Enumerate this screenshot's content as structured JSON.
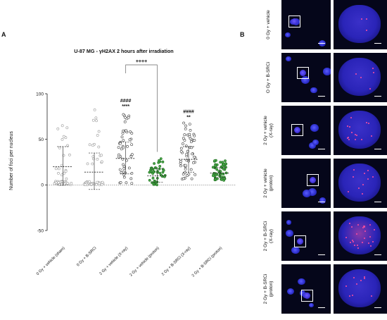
{
  "panel_a_letter": "A",
  "panel_b_letter": "B",
  "chart_data": {
    "type": "scatter",
    "title": "U-87 MG  - γH2AX 2 hours after irradiation",
    "ylabel": "Number of foci per nucleus",
    "xlabel": "",
    "ylim": [
      -50,
      100
    ],
    "yticks": [
      -50,
      0,
      50,
      100
    ],
    "categories": [
      "0 Gy + vehicle (sham)",
      "0 Gy + B-SRCi",
      "2 Gy + vehicle (X-ray)",
      "2 Gy + vehicle (proton)",
      "2 Gy + B-SRCi (X-ray)",
      "2 Gy + B-SRCi (proton)"
    ],
    "colors": [
      "#9a9a9a",
      "#9a9a9a",
      "#3a3a3a",
      "#1f6e1f",
      "#3a3a3a",
      "#1f6e1f"
    ],
    "fills": [
      "#ffffff",
      "#ffffff",
      "#ffffff",
      "#4aa84a",
      "#ffffff",
      "#4aa84a"
    ],
    "means": [
      20,
      14,
      29,
      10,
      28,
      13
    ],
    "sd_upper": [
      42,
      35,
      47,
      18,
      42,
      19
    ],
    "sd_lower": [
      0,
      -5,
      12,
      3,
      14,
      8
    ],
    "ranges": [
      [
        0,
        66
      ],
      [
        0,
        86
      ],
      [
        0,
        80
      ],
      [
        0,
        30
      ],
      [
        6,
        68
      ],
      [
        4,
        27
      ]
    ],
    "annotations": [
      {
        "category": 2,
        "lines": [
          "####",
          "****"
        ]
      },
      {
        "category": 4,
        "lines": [
          "####",
          "**"
        ]
      }
    ],
    "comparison": {
      "from": 2,
      "to": 3,
      "label": "++++"
    },
    "grid": false,
    "reference_line": 0
  },
  "microscopy_rows": [
    {
      "label_lines": [
        "0 Gy + vehicle"
      ]
    },
    {
      "label_lines": [
        "O Gy + B-SRCi"
      ]
    },
    {
      "label_lines": [
        "2 Gy + vehicle",
        "(X-ray)"
      ]
    },
    {
      "label_lines": [
        "2 Gy + vehicle",
        "(proton)"
      ]
    },
    {
      "label_lines": [
        "2 Gy + B-SRCi",
        "(X-ray)"
      ]
    },
    {
      "label_lines": [
        "2 Gy + B-SRCi",
        "(proton)"
      ]
    }
  ]
}
